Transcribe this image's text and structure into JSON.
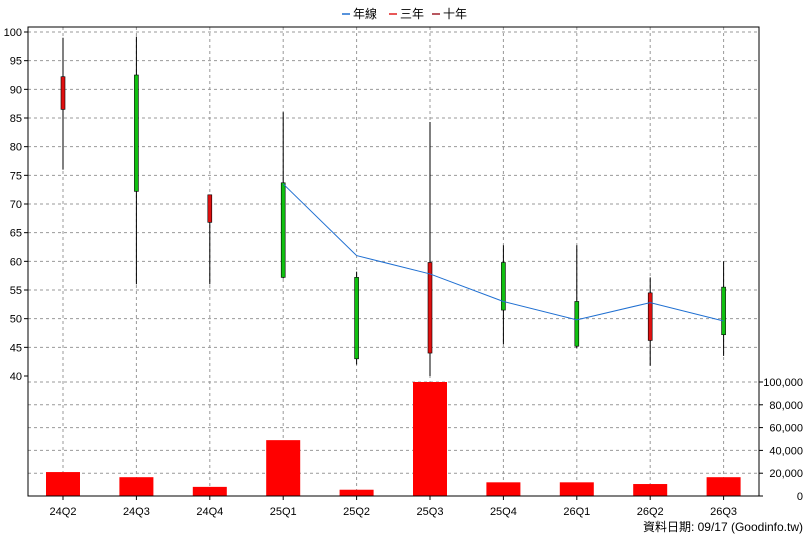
{
  "chart_data": {
    "type": "candlestick",
    "legend": [
      {
        "name": "年線",
        "color": "#1f6fd1"
      },
      {
        "name": "三年",
        "color": "#e02020"
      },
      {
        "name": "十年",
        "color": "#a0202a"
      }
    ],
    "categories": [
      "24Q2",
      "24Q3",
      "24Q4",
      "25Q1",
      "25Q2",
      "25Q3",
      "25Q4",
      "26Q1",
      "26Q2",
      "26Q3"
    ],
    "ohlc": [
      {
        "open": 86.5,
        "high": 99,
        "low": 76,
        "close": 92.2
      },
      {
        "open": 92.5,
        "high": 99.2,
        "low": 56,
        "close": 72.2
      },
      {
        "open": 66.8,
        "high": 71.6,
        "low": 56,
        "close": 71.6
      },
      {
        "open": 73.7,
        "high": 86,
        "low": 57,
        "close": 57.2
      },
      {
        "open": 57.2,
        "high": 58.2,
        "low": 42,
        "close": 43
      },
      {
        "open": 44,
        "high": 84.3,
        "low": 40,
        "close": 59.8
      },
      {
        "open": 59.8,
        "high": 62.8,
        "low": 45.5,
        "close": 51.5
      },
      {
        "open": 53,
        "high": 62.8,
        "low": 44.8,
        "close": 45.2
      },
      {
        "open": 46.2,
        "high": 57.2,
        "low": 41.8,
        "close": 54.5
      },
      {
        "open": 55.5,
        "high": 60,
        "low": 43.5,
        "close": 47.2
      }
    ],
    "up_color": "#e01010",
    "down_color": "#10c010",
    "price_axis": {
      "min": 40,
      "max": 100,
      "ticks": [
        40,
        45,
        50,
        55,
        60,
        65,
        70,
        75,
        80,
        85,
        90,
        95,
        100
      ]
    },
    "line_series": {
      "name": "年線",
      "start_index": 3,
      "values": [
        73.5,
        61,
        57.8,
        53,
        49.8,
        52.8,
        49.6
      ]
    },
    "volume": {
      "values": [
        21000,
        16500,
        8000,
        49000,
        5500,
        100000,
        12000,
        12000,
        10500,
        16500
      ],
      "color": "#ff0000",
      "axis": {
        "min": 0,
        "max": 100000,
        "ticks": [
          0,
          20000,
          40000,
          60000,
          80000,
          100000
        ],
        "tick_labels": [
          "0",
          "20,000",
          "40,000",
          "60,000",
          "80,000",
          "100,000"
        ]
      }
    },
    "source_text": "資料日期: 09/17  (Goodinfo.tw)"
  }
}
